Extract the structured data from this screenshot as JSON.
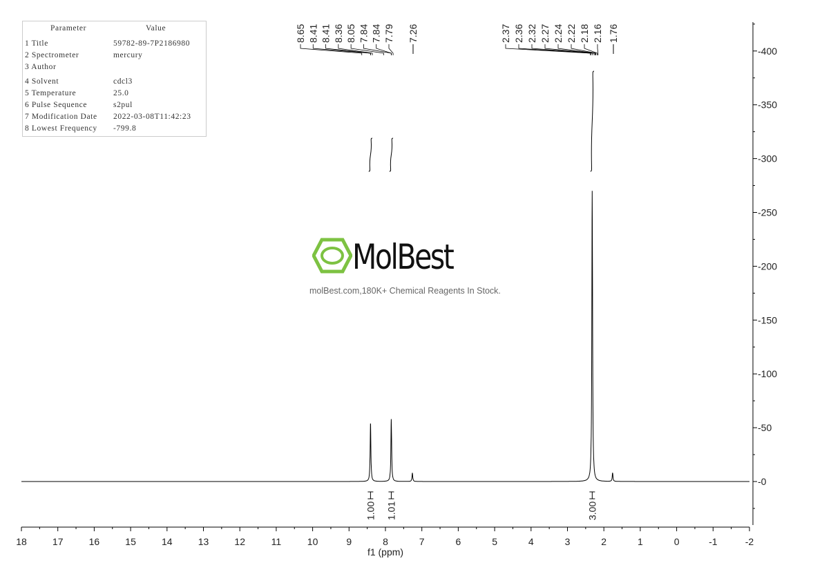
{
  "parameters": {
    "header": [
      "Parameter",
      "Value"
    ],
    "rows": [
      [
        "1 Title",
        "59782-89-7P2186980"
      ],
      [
        "2 Spectrometer",
        "mercury"
      ],
      [
        "3 Author",
        ""
      ],
      [
        "4 Solvent",
        "cdcl3"
      ],
      [
        "5 Temperature",
        "25.0"
      ],
      [
        "6 Pulse Sequence",
        "s2pul"
      ],
      [
        "7 Modification Date",
        "2022-03-08T11:42:23"
      ],
      [
        "8 Lowest Frequency",
        "-799.8"
      ]
    ]
  },
  "watermark": {
    "logo": "MolBest",
    "text": "molBest.com,180K+ Chemical Reagents In Stock.",
    "color": "#7dc242"
  },
  "chart_data": {
    "type": "line",
    "xlabel": "f1 (ppm)",
    "xlim": [
      18,
      -2
    ],
    "ylim": [
      -40,
      420
    ],
    "xticks": [
      18,
      17,
      16,
      15,
      14,
      13,
      12,
      11,
      10,
      9,
      8,
      7,
      6,
      5,
      4,
      3,
      2,
      1,
      0,
      -1,
      -2
    ],
    "yticks": [
      0,
      50,
      100,
      150,
      200,
      250,
      300,
      350,
      400
    ],
    "peaks": [
      {
        "ppm": 8.41,
        "height": 55
      },
      {
        "ppm": 7.84,
        "height": 58
      },
      {
        "ppm": 7.26,
        "height": 8
      },
      {
        "ppm": 2.32,
        "height": 270
      },
      {
        "ppm": 1.76,
        "height": 8
      }
    ],
    "peak_label_groups": [
      {
        "labels": [
          "8.65",
          "8.41",
          "8.41",
          "8.36",
          "8.05",
          "7.84",
          "7.84",
          "7.79"
        ]
      },
      {
        "labels": [
          "7.26"
        ]
      },
      {
        "labels": [
          "2.37",
          "2.36",
          "2.32",
          "2.27",
          "2.24",
          "2.22",
          "2.18",
          "2.16"
        ]
      },
      {
        "labels": [
          "1.76"
        ]
      }
    ],
    "integrals": [
      {
        "from": 8.46,
        "to": 8.36,
        "value": "1.00"
      },
      {
        "from": 7.89,
        "to": 7.79,
        "value": "1.01"
      },
      {
        "from": 2.37,
        "to": 2.27,
        "value": "3.00"
      }
    ]
  }
}
